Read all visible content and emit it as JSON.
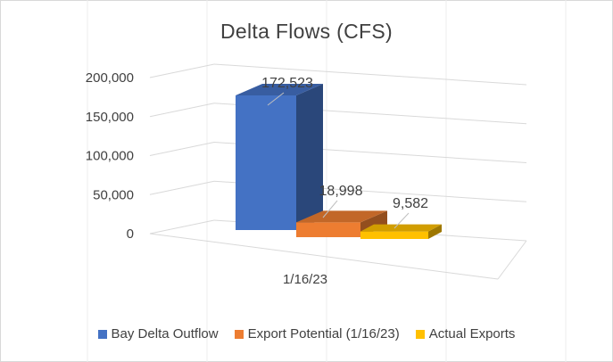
{
  "chart_data": {
    "type": "bar",
    "title": "Delta Flows (CFS)",
    "categories": [
      "1/16/23"
    ],
    "series": [
      {
        "name": "Bay Delta Outflow",
        "values": [
          172523
        ],
        "label": "172,523",
        "color": "#4472c4"
      },
      {
        "name": "Export Potential (1/16/23)",
        "values": [
          18998
        ],
        "label": "18,998",
        "color": "#ed7d31"
      },
      {
        "name": "Actual Exports",
        "values": [
          9582
        ],
        "label": "9,582",
        "color": "#ffc000"
      }
    ],
    "ylim": [
      0,
      200000
    ],
    "yticks": [
      0,
      50000,
      100000,
      150000,
      200000
    ],
    "ytick_labels": [
      "0",
      "50,000",
      "100,000",
      "150,000",
      "200,000"
    ],
    "xlabel": "",
    "ylabel": "",
    "legend_position": "bottom",
    "grid": true
  }
}
